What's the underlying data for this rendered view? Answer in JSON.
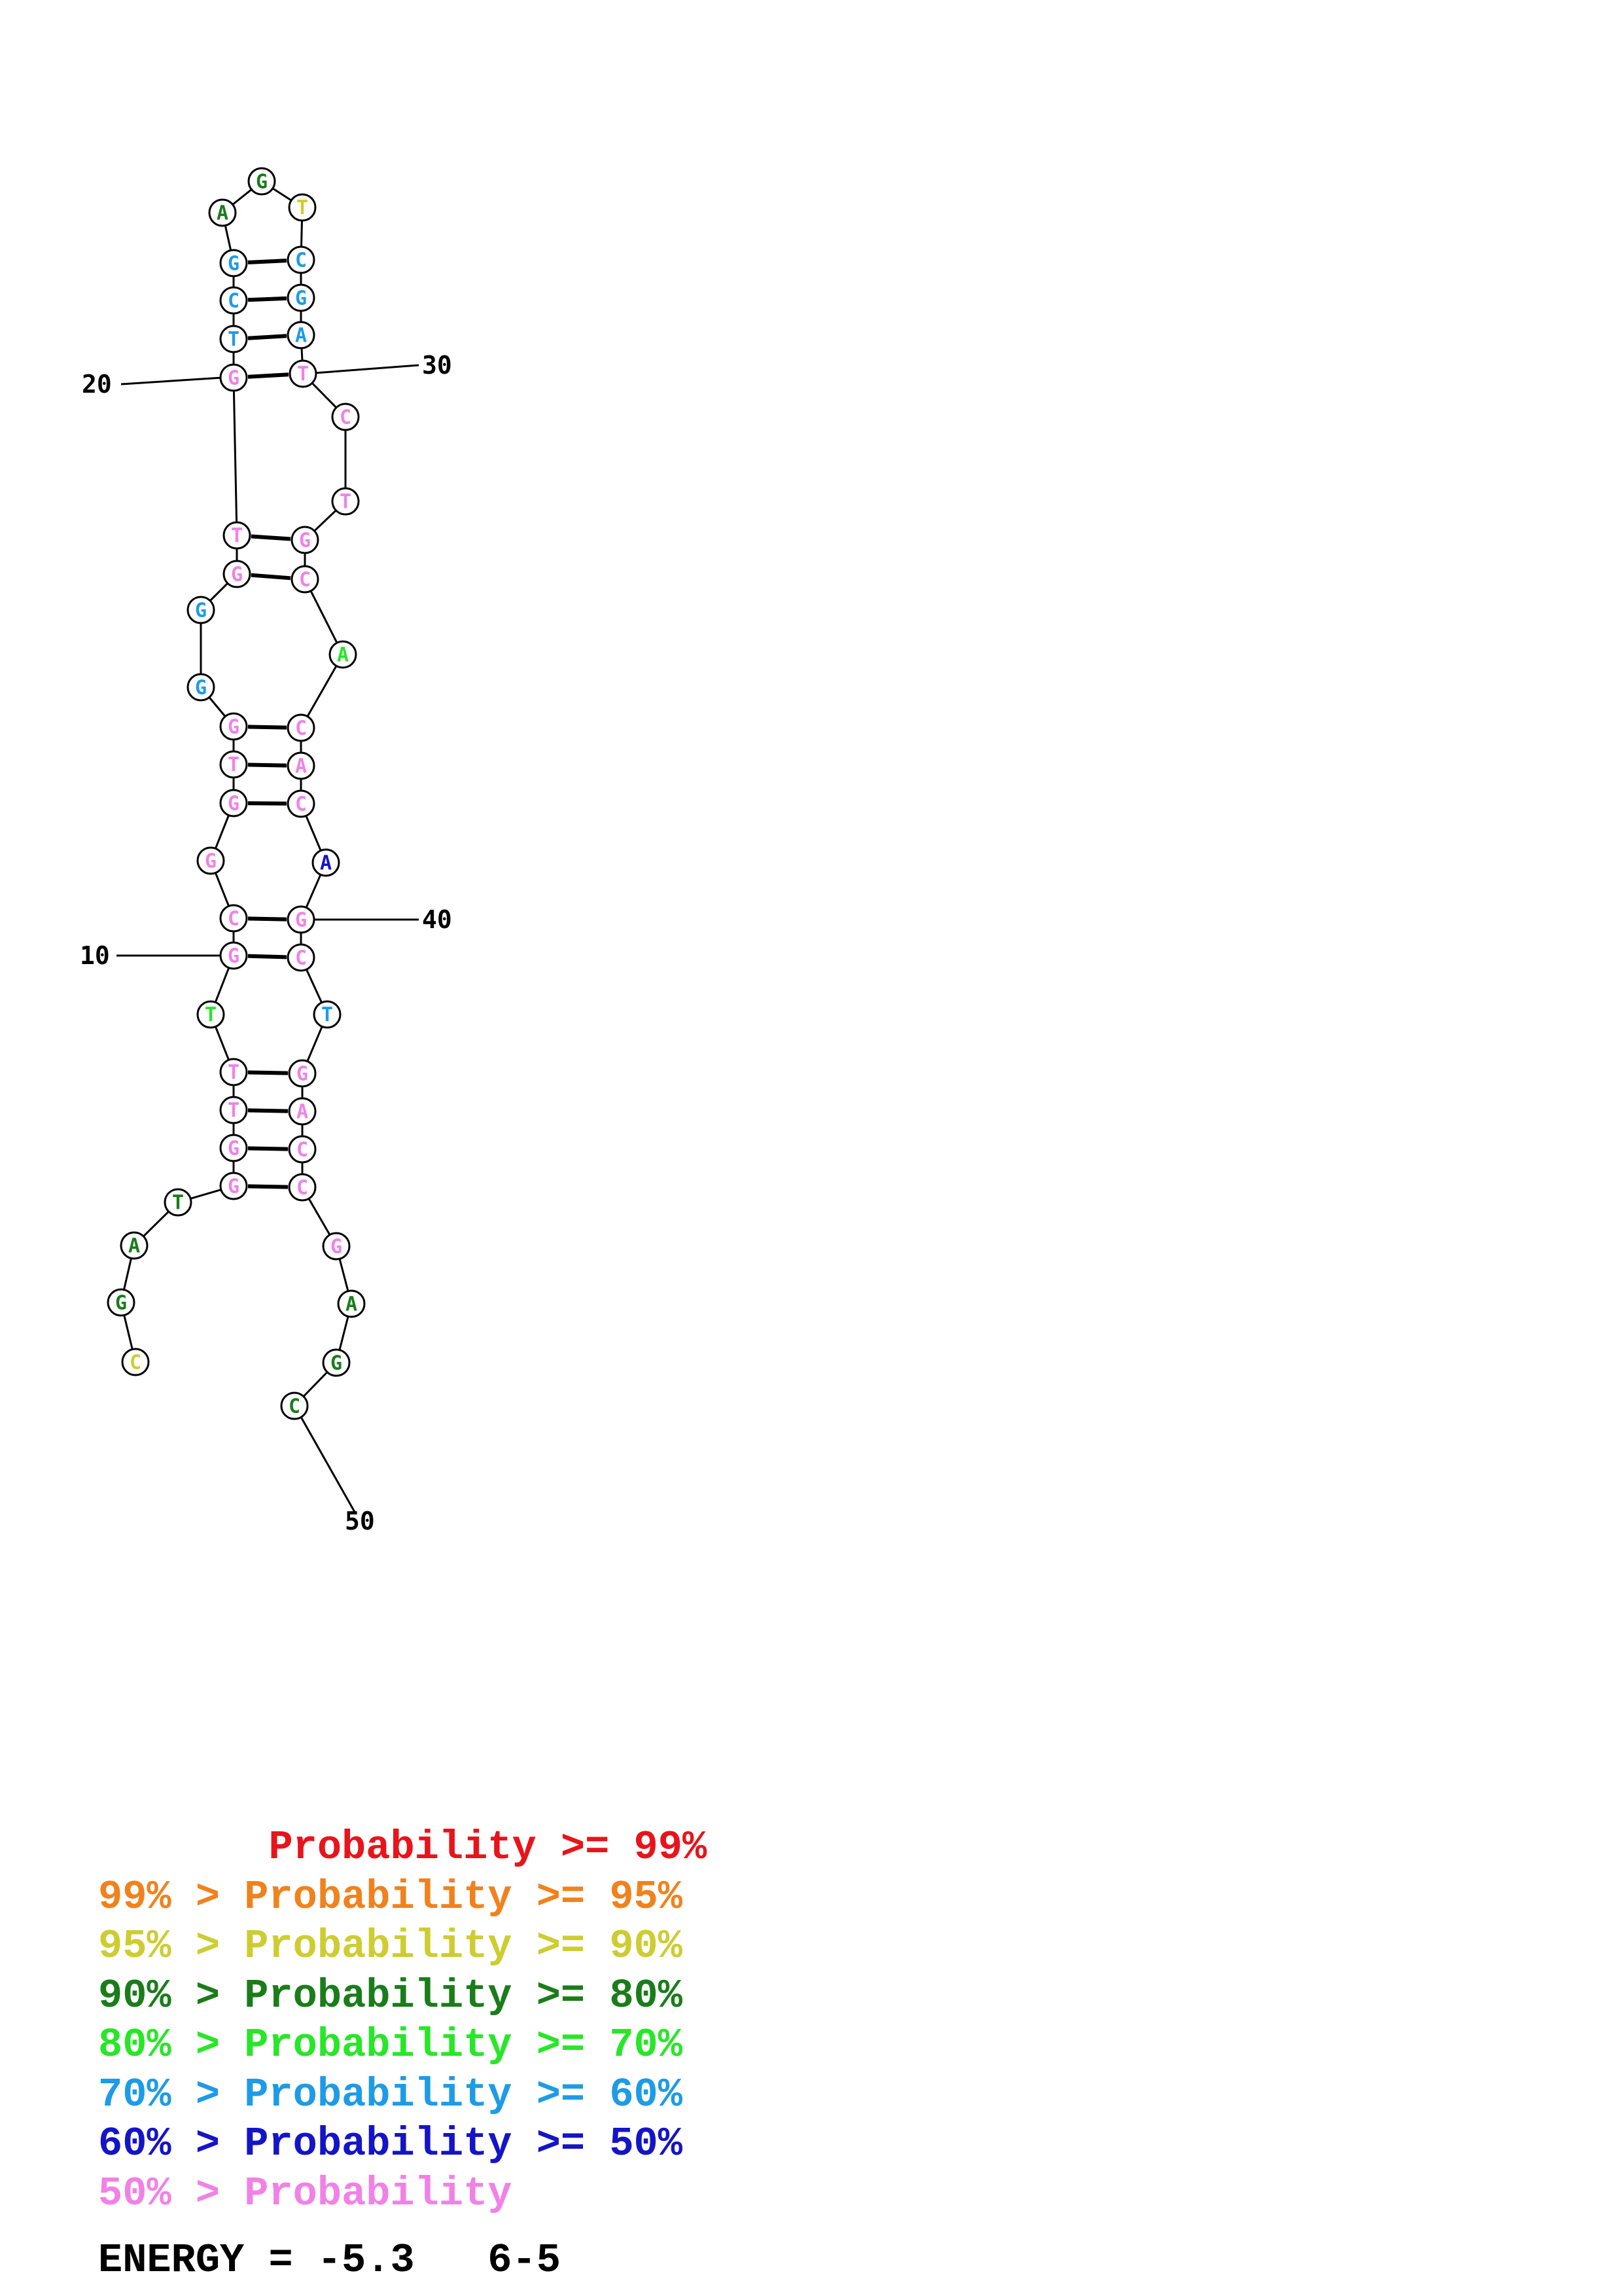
{
  "colors": {
    "red": "#e8141c",
    "orange": "#f0821e",
    "yellow": "#cdcd32",
    "dark_green": "#1a7d1a",
    "bright_green": "#28e628",
    "light_blue": "#1e9be6",
    "blue": "#1414c8",
    "pink": "#f082e6"
  },
  "structure": {
    "nucleotides": [
      {
        "n": 1,
        "base": "C",
        "color": "yellow"
      },
      {
        "n": 2,
        "base": "G",
        "color": "dark_green"
      },
      {
        "n": 3,
        "base": "A",
        "color": "dark_green"
      },
      {
        "n": 4,
        "base": "T",
        "color": "dark_green"
      },
      {
        "n": 5,
        "base": "G",
        "color": "pink"
      },
      {
        "n": 6,
        "base": "G",
        "color": "pink"
      },
      {
        "n": 7,
        "base": "T",
        "color": "pink"
      },
      {
        "n": 8,
        "base": "T",
        "color": "pink"
      },
      {
        "n": 9,
        "base": "T",
        "color": "bright_green"
      },
      {
        "n": 10,
        "base": "G",
        "color": "pink"
      },
      {
        "n": 11,
        "base": "C",
        "color": "pink"
      },
      {
        "n": 12,
        "base": "G",
        "color": "pink"
      },
      {
        "n": 13,
        "base": "G",
        "color": "pink"
      },
      {
        "n": 14,
        "base": "T",
        "color": "pink"
      },
      {
        "n": 15,
        "base": "G",
        "color": "pink"
      },
      {
        "n": 16,
        "base": "G",
        "color": "light_blue"
      },
      {
        "n": 17,
        "base": "G",
        "color": "light_blue"
      },
      {
        "n": 18,
        "base": "G",
        "color": "pink"
      },
      {
        "n": 19,
        "base": "T",
        "color": "pink"
      },
      {
        "n": 20,
        "base": "G",
        "color": "pink"
      },
      {
        "n": 21,
        "base": "T",
        "color": "light_blue"
      },
      {
        "n": 22,
        "base": "C",
        "color": "light_blue"
      },
      {
        "n": 23,
        "base": "G",
        "color": "light_blue"
      },
      {
        "n": 24,
        "base": "A",
        "color": "dark_green"
      },
      {
        "n": 25,
        "base": "G",
        "color": "dark_green"
      },
      {
        "n": 26,
        "base": "T",
        "color": "yellow"
      },
      {
        "n": 27,
        "base": "C",
        "color": "light_blue"
      },
      {
        "n": 28,
        "base": "G",
        "color": "light_blue"
      },
      {
        "n": 29,
        "base": "A",
        "color": "light_blue"
      },
      {
        "n": 30,
        "base": "T",
        "color": "pink"
      },
      {
        "n": 31,
        "base": "C",
        "color": "pink"
      },
      {
        "n": 32,
        "base": "T",
        "color": "pink"
      },
      {
        "n": 33,
        "base": "G",
        "color": "pink"
      },
      {
        "n": 34,
        "base": "C",
        "color": "pink"
      },
      {
        "n": 35,
        "base": "A",
        "color": "bright_green"
      },
      {
        "n": 36,
        "base": "C",
        "color": "pink"
      },
      {
        "n": 37,
        "base": "A",
        "color": "pink"
      },
      {
        "n": 38,
        "base": "C",
        "color": "pink"
      },
      {
        "n": 39,
        "base": "A",
        "color": "blue"
      },
      {
        "n": 40,
        "base": "G",
        "color": "pink"
      },
      {
        "n": 41,
        "base": "C",
        "color": "pink"
      },
      {
        "n": 42,
        "base": "T",
        "color": "light_blue"
      },
      {
        "n": 43,
        "base": "G",
        "color": "pink"
      },
      {
        "n": 44,
        "base": "A",
        "color": "pink"
      },
      {
        "n": 45,
        "base": "C",
        "color": "pink"
      },
      {
        "n": 46,
        "base": "C",
        "color": "pink"
      },
      {
        "n": 47,
        "base": "G",
        "color": "pink"
      },
      {
        "n": 48,
        "base": "A",
        "color": "dark_green"
      },
      {
        "n": 49,
        "base": "G",
        "color": "dark_green"
      },
      {
        "n": 50,
        "base": "C",
        "color": "dark_green"
      }
    ],
    "pairs": [
      [
        5,
        46
      ],
      [
        6,
        45
      ],
      [
        7,
        44
      ],
      [
        8,
        43
      ],
      [
        10,
        41
      ],
      [
        11,
        40
      ],
      [
        13,
        38
      ],
      [
        14,
        37
      ],
      [
        15,
        36
      ],
      [
        18,
        34
      ],
      [
        19,
        33
      ],
      [
        20,
        30
      ],
      [
        21,
        29
      ],
      [
        22,
        28
      ],
      [
        23,
        27
      ]
    ],
    "position_labels": [
      {
        "n": 10,
        "text": "10"
      },
      {
        "n": 20,
        "text": "20"
      },
      {
        "n": 30,
        "text": "30"
      },
      {
        "n": 40,
        "text": "40"
      },
      {
        "n": 50,
        "text": "50"
      }
    ]
  },
  "legend": [
    {
      "text": "       Probability >= 99%",
      "color": "#e8141c"
    },
    {
      "text": "99% > Probability >= 95%",
      "color": "#f0821e"
    },
    {
      "text": "95% > Probability >= 90%",
      "color": "#cdcd32"
    },
    {
      "text": "90% > Probability >= 80%",
      "color": "#1a7d1a"
    },
    {
      "text": "80% > Probability >= 70%",
      "color": "#28e628"
    },
    {
      "text": "70% > Probability >= 60%",
      "color": "#1e9be6"
    },
    {
      "text": "60% > Probability >= 50%",
      "color": "#1414c8"
    },
    {
      "text": "50% > Probability",
      "color": "#f082e6"
    }
  ],
  "energy": "ENERGY = -5.3   6-5"
}
